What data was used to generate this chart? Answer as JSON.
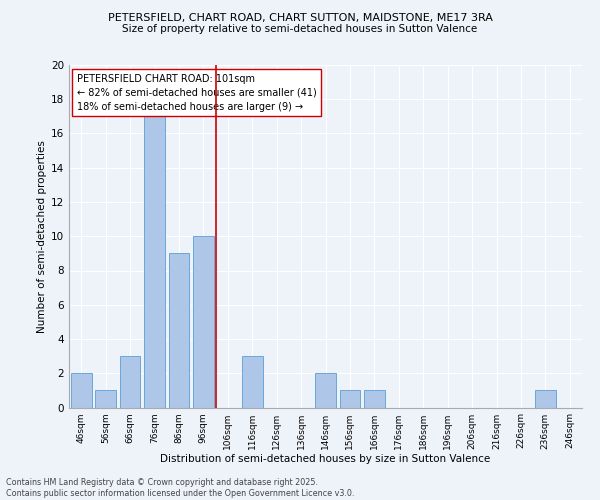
{
  "title_line1": "PETERSFIELD, CHART ROAD, CHART SUTTON, MAIDSTONE, ME17 3RA",
  "title_line2": "Size of property relative to semi-detached houses in Sutton Valence",
  "xlabel": "Distribution of semi-detached houses by size in Sutton Valence",
  "ylabel": "Number of semi-detached properties",
  "bin_labels": [
    "46sqm",
    "56sqm",
    "66sqm",
    "76sqm",
    "86sqm",
    "96sqm",
    "106sqm",
    "116sqm",
    "126sqm",
    "136sqm",
    "146sqm",
    "156sqm",
    "166sqm",
    "176sqm",
    "186sqm",
    "196sqm",
    "206sqm",
    "216sqm",
    "226sqm",
    "236sqm",
    "246sqm"
  ],
  "bin_values": [
    2,
    1,
    3,
    17,
    9,
    10,
    0,
    3,
    0,
    0,
    2,
    1,
    1,
    0,
    0,
    0,
    0,
    0,
    0,
    1,
    0
  ],
  "bar_color": "#aec6e8",
  "bar_edge_color": "#5a9fd4",
  "vline_x": 5.5,
  "vline_color": "#cc0000",
  "annotation_title": "PETERSFIELD CHART ROAD: 101sqm",
  "annotation_line1": "← 82% of semi-detached houses are smaller (41)",
  "annotation_line2": "18% of semi-detached houses are larger (9) →",
  "footer_line1": "Contains HM Land Registry data © Crown copyright and database right 2025.",
  "footer_line2": "Contains public sector information licensed under the Open Government Licence v3.0.",
  "background_color": "#eef2f9",
  "ylim": [
    0,
    20
  ],
  "yticks": [
    0,
    2,
    4,
    6,
    8,
    10,
    12,
    14,
    16,
    18,
    20
  ]
}
